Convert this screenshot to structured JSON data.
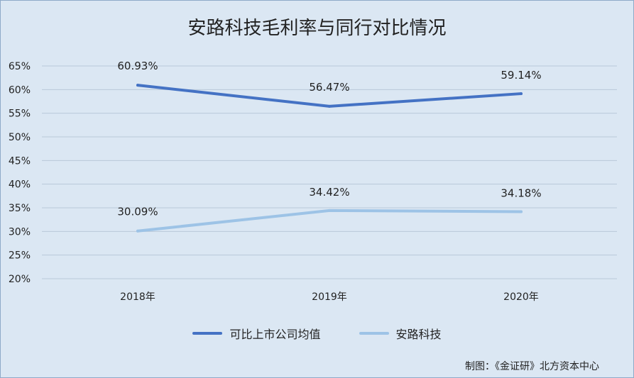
{
  "chart_data": {
    "type": "line",
    "title": "安路科技毛利率与同行对比情况",
    "categories": [
      "2018年",
      "2019年",
      "2020年"
    ],
    "ylim": [
      0.2,
      0.65
    ],
    "yticks": [
      "65%",
      "60%",
      "55%",
      "50%",
      "45%",
      "40%",
      "35%",
      "30%",
      "25%",
      "20%"
    ],
    "ytick_values": [
      0.65,
      0.6,
      0.55,
      0.5,
      0.45,
      0.4,
      0.35,
      0.3,
      0.25,
      0.2
    ],
    "grid": true,
    "legend_position": "bottom",
    "series": [
      {
        "name": "可比上市公司均值",
        "values": [
          0.6093,
          0.5647,
          0.5914
        ],
        "labels": [
          "60.93%",
          "56.47%",
          "59.14%"
        ],
        "color": "#4472c4"
      },
      {
        "name": "安路科技",
        "values": [
          0.3009,
          0.3442,
          0.3418
        ],
        "labels": [
          "30.09%",
          "34.42%",
          "34.18%"
        ],
        "color": "#9dc3e6"
      }
    ]
  },
  "source": "制图：《金证研》北方资本中心"
}
